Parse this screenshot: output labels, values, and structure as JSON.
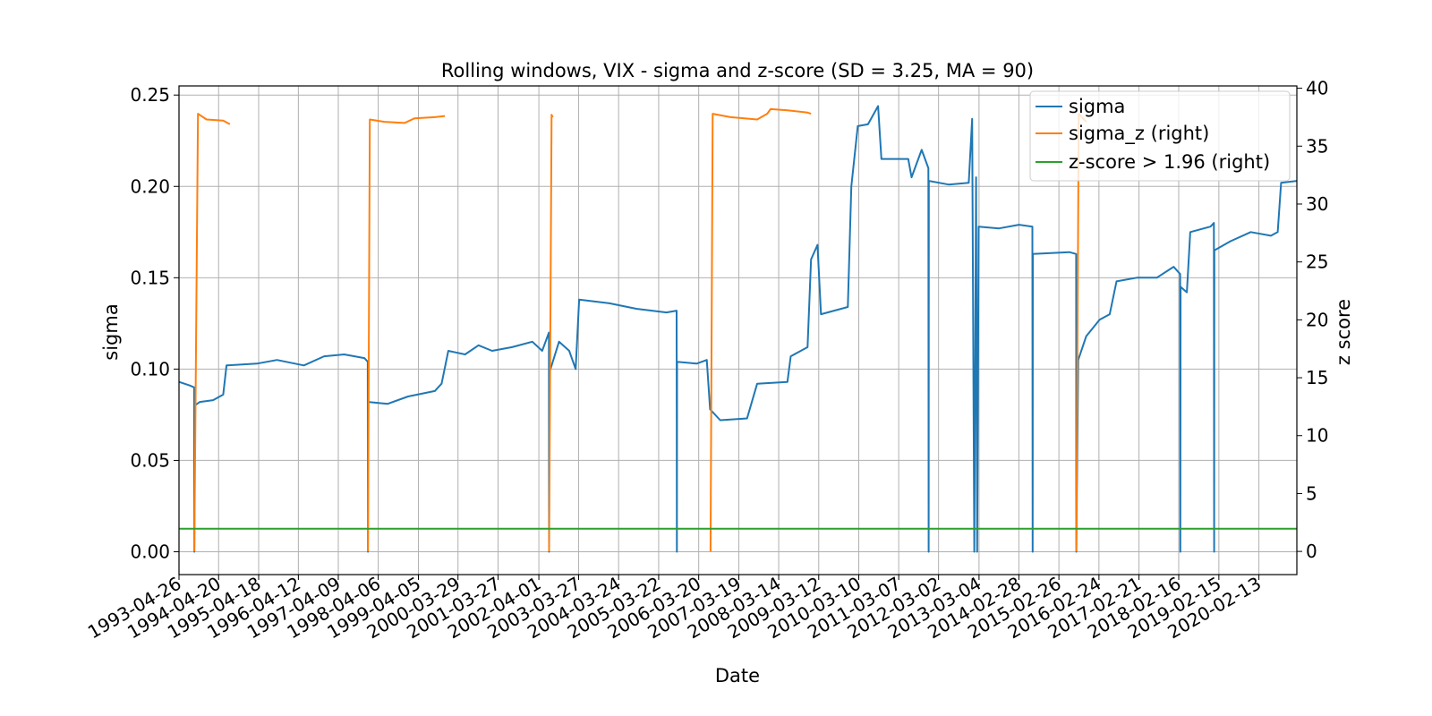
{
  "chart_data": {
    "type": "line",
    "title": "Rolling windows, VIX - sigma and z-score (SD = 3.25, MA = 90)",
    "xlabel": "Date",
    "ylabel": "sigma",
    "y2label": "z score",
    "xlim": [
      "1993-04-26",
      "2021-01-22"
    ],
    "ylim": [
      -0.0125,
      0.255
    ],
    "y2lim": [
      -2,
      40.2
    ],
    "grid": true,
    "legend_position": "top-right",
    "x_tick_labels": [
      "1993-04-26",
      "1994-04-20",
      "1995-04-18",
      "1996-04-12",
      "1997-04-09",
      "1998-04-06",
      "1999-04-05",
      "2000-03-29",
      "2001-03-27",
      "2002-04-01",
      "2003-03-27",
      "2004-03-24",
      "2005-03-22",
      "2006-03-20",
      "2007-03-19",
      "2008-03-14",
      "2009-03-12",
      "2010-03-10",
      "2011-03-07",
      "2012-03-02",
      "2013-03-04",
      "2014-02-28",
      "2015-02-26",
      "2016-02-24",
      "2017-02-21",
      "2018-02-16",
      "2019-02-15",
      "2020-02-13"
    ],
    "y_ticks": [
      "0.00",
      "0.05",
      "0.10",
      "0.15",
      "0.20",
      "0.25"
    ],
    "y2_ticks": [
      "0",
      "5",
      "10",
      "15",
      "20",
      "25",
      "30",
      "35",
      "40"
    ],
    "series": [
      {
        "name": "sigma",
        "axis": "left",
        "color": "#1f77b4",
        "points": [
          [
            "1993-04-26",
            0.093
          ],
          [
            "1993-08-01",
            0.091
          ],
          [
            "1993-09-10",
            0.09
          ],
          [
            "1993-09-12",
            0.0
          ],
          [
            "1993-09-15",
            0.08
          ],
          [
            "1993-11-01",
            0.082
          ],
          [
            "1994-03-01",
            0.083
          ],
          [
            "1994-06-01",
            0.086
          ],
          [
            "1994-07-01",
            0.102
          ],
          [
            "1995-04-01",
            0.103
          ],
          [
            "1995-10-01",
            0.105
          ],
          [
            "1996-06-01",
            0.102
          ],
          [
            "1996-12-01",
            0.107
          ],
          [
            "1997-06-01",
            0.108
          ],
          [
            "1997-12-01",
            0.106
          ],
          [
            "1998-01-01",
            0.104
          ],
          [
            "1998-01-03",
            0.0
          ],
          [
            "1998-01-05",
            0.082
          ],
          [
            "1998-07-01",
            0.081
          ],
          [
            "1999-01-01",
            0.085
          ],
          [
            "1999-09-01",
            0.088
          ],
          [
            "1999-11-01",
            0.092
          ],
          [
            "2000-01-01",
            0.11
          ],
          [
            "2000-06-01",
            0.108
          ],
          [
            "2000-10-01",
            0.113
          ],
          [
            "2001-02-01",
            0.11
          ],
          [
            "2001-08-01",
            0.112
          ],
          [
            "2002-02-01",
            0.115
          ],
          [
            "2002-05-01",
            0.11
          ],
          [
            "2002-07-01",
            0.12
          ],
          [
            "2002-07-03",
            0.0
          ],
          [
            "2002-07-05",
            0.098
          ],
          [
            "2002-10-01",
            0.115
          ],
          [
            "2003-01-01",
            0.11
          ],
          [
            "2003-03-01",
            0.1
          ],
          [
            "2003-04-01",
            0.138
          ],
          [
            "2004-01-01",
            0.136
          ],
          [
            "2004-09-01",
            0.133
          ],
          [
            "2005-06-01",
            0.131
          ],
          [
            "2005-09-01",
            0.132
          ],
          [
            "2005-09-03",
            0.0
          ],
          [
            "2005-09-05",
            0.104
          ],
          [
            "2006-03-01",
            0.103
          ],
          [
            "2006-06-01",
            0.105
          ],
          [
            "2006-07-01",
            0.078
          ],
          [
            "2006-10-01",
            0.072
          ],
          [
            "2007-06-01",
            0.073
          ],
          [
            "2007-09-01",
            0.092
          ],
          [
            "2008-06-01",
            0.093
          ],
          [
            "2008-07-01",
            0.107
          ],
          [
            "2008-12-01",
            0.112
          ],
          [
            "2009-01-01",
            0.16
          ],
          [
            "2009-03-01",
            0.168
          ],
          [
            "2009-04-01",
            0.13
          ],
          [
            "2009-12-01",
            0.134
          ],
          [
            "2010-01-01",
            0.2
          ],
          [
            "2010-03-01",
            0.233
          ],
          [
            "2010-06-01",
            0.234
          ],
          [
            "2010-09-01",
            0.244
          ],
          [
            "2010-10-01",
            0.215
          ],
          [
            "2011-06-01",
            0.215
          ],
          [
            "2011-07-01",
            0.205
          ],
          [
            "2011-10-01",
            0.22
          ],
          [
            "2011-12-01",
            0.21
          ],
          [
            "2011-12-03",
            0.0
          ],
          [
            "2011-12-05",
            0.203
          ],
          [
            "2012-06-01",
            0.201
          ],
          [
            "2012-12-01",
            0.202
          ],
          [
            "2013-01-01",
            0.237
          ],
          [
            "2013-01-20",
            0.0
          ],
          [
            "2013-02-05",
            0.205
          ],
          [
            "2013-02-15",
            0.0
          ],
          [
            "2013-03-01",
            0.178
          ],
          [
            "2013-09-01",
            0.177
          ],
          [
            "2014-03-01",
            0.179
          ],
          [
            "2014-07-01",
            0.178
          ],
          [
            "2014-07-03",
            0.0
          ],
          [
            "2014-07-05",
            0.163
          ],
          [
            "2015-06-01",
            0.164
          ],
          [
            "2015-08-01",
            0.163
          ],
          [
            "2015-08-03",
            0.0
          ],
          [
            "2015-08-20",
            0.105
          ],
          [
            "2015-11-01",
            0.118
          ],
          [
            "2016-03-01",
            0.127
          ],
          [
            "2016-06-01",
            0.13
          ],
          [
            "2016-08-01",
            0.148
          ],
          [
            "2017-02-01",
            0.15
          ],
          [
            "2017-08-01",
            0.15
          ],
          [
            "2018-01-01",
            0.156
          ],
          [
            "2018-03-01",
            0.152
          ],
          [
            "2018-03-03",
            0.0
          ],
          [
            "2018-03-05",
            0.145
          ],
          [
            "2018-05-01",
            0.142
          ],
          [
            "2018-06-01",
            0.175
          ],
          [
            "2018-12-01",
            0.178
          ],
          [
            "2019-01-01",
            0.18
          ],
          [
            "2019-01-03",
            0.0
          ],
          [
            "2019-01-05",
            0.165
          ],
          [
            "2019-06-01",
            0.17
          ],
          [
            "2019-12-01",
            0.175
          ],
          [
            "2020-06-01",
            0.173
          ],
          [
            "2020-08-01",
            0.175
          ],
          [
            "2020-09-01",
            0.202
          ],
          [
            "2021-01-22",
            0.203
          ]
        ]
      },
      {
        "name": "sigma_z (right)",
        "axis": "right",
        "color": "#ff7f0e",
        "segments": [
          [
            [
              "1993-09-12",
              0.0
            ],
            [
              "1993-10-15",
              37.8
            ],
            [
              "1994-01-01",
              37.3
            ],
            [
              "1994-06-01",
              37.2
            ],
            [
              "1994-08-01",
              36.9
            ]
          ],
          [
            [
              "1998-01-03",
              0.0
            ],
            [
              "1998-01-20",
              37.3
            ],
            [
              "1998-06-01",
              37.1
            ],
            [
              "1998-12-01",
              37.0
            ],
            [
              "1999-03-01",
              37.4
            ],
            [
              "1999-09-01",
              37.5
            ],
            [
              "1999-12-01",
              37.6
            ]
          ],
          [
            [
              "2002-07-03",
              0.0
            ],
            [
              "2002-07-25",
              37.7
            ],
            [
              "2002-08-05",
              37.5
            ]
          ],
          [
            [
              "2006-07-05",
              0.0
            ],
            [
              "2006-07-25",
              37.8
            ],
            [
              "2007-01-01",
              37.5
            ],
            [
              "2007-09-01",
              37.3
            ],
            [
              "2007-12-01",
              37.8
            ],
            [
              "2008-01-01",
              38.2
            ],
            [
              "2008-06-01",
              38.1
            ],
            [
              "2008-12-01",
              37.9
            ],
            [
              "2009-01-01",
              37.8
            ]
          ],
          [
            [
              "2015-08-03",
              0.0
            ],
            [
              "2015-08-25",
              37.8
            ],
            [
              "2015-11-01",
              37.1
            ]
          ]
        ]
      },
      {
        "name": "z-score > 1.96 (right)",
        "axis": "right",
        "color": "#2ca02c",
        "points": [
          [
            "1993-04-26",
            1.96
          ],
          [
            "2021-01-22",
            1.96
          ]
        ]
      }
    ]
  }
}
